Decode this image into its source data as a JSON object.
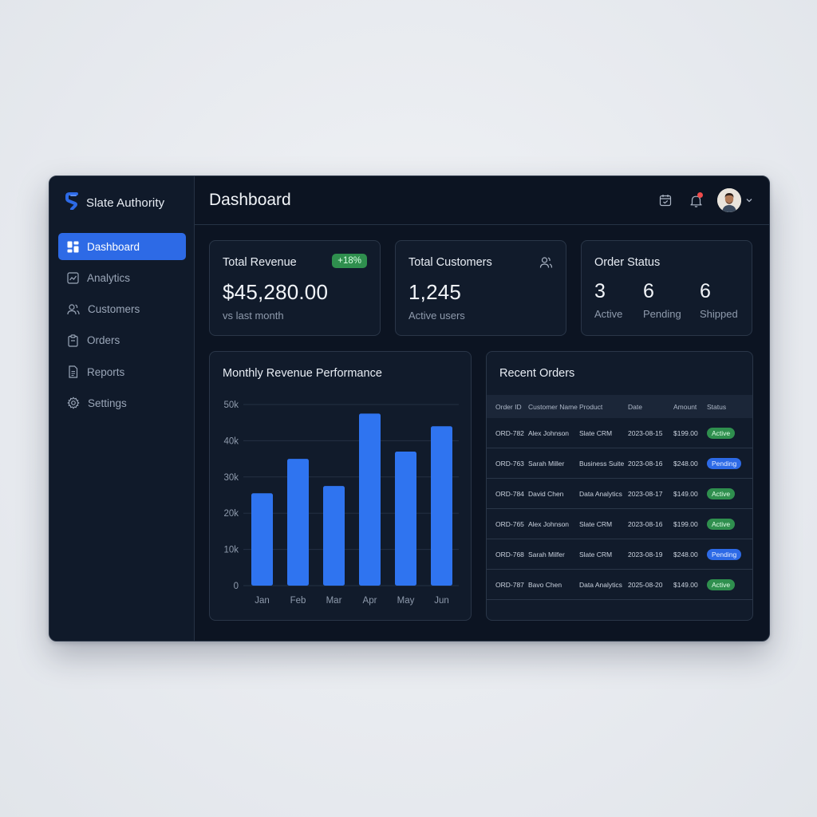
{
  "brand": {
    "name": "Slate Authority",
    "logo_icon": "slate-logo-icon",
    "accent": "#2d6ae6"
  },
  "sidebar": {
    "items": [
      {
        "label": "Dashboard",
        "icon": "dashboard-grid-icon",
        "active": true
      },
      {
        "label": "Analytics",
        "icon": "analytics-chart-icon",
        "active": false
      },
      {
        "label": "Customers",
        "icon": "users-icon",
        "active": false
      },
      {
        "label": "Orders",
        "icon": "clipboard-icon",
        "active": false
      },
      {
        "label": "Reports",
        "icon": "document-icon",
        "active": false
      },
      {
        "label": "Settings",
        "icon": "gear-icon",
        "active": false
      }
    ]
  },
  "header": {
    "title": "Dashboard",
    "icons": [
      "calendar-icon",
      "bell-icon",
      "avatar",
      "chevron-down-icon"
    ]
  },
  "cards": {
    "revenue": {
      "title": "Total Revenue",
      "value": "$45,280.00",
      "badge": "+18%",
      "sub": "vs last month"
    },
    "customers": {
      "title": "Total Customers",
      "value": "1,245",
      "sub": "Active users",
      "icon": "users-icon"
    },
    "order_status": {
      "title": "Order Status",
      "items": [
        {
          "value": "3",
          "label": "Active"
        },
        {
          "value": "6",
          "label": "Pending"
        },
        {
          "value": "6",
          "label": "Shipped"
        }
      ]
    }
  },
  "chart": {
    "title": "Monthly Revenue Performance"
  },
  "chart_data": {
    "type": "bar",
    "title": "Monthly Revenue Performance",
    "categories": [
      "Jan",
      "Feb",
      "Mar",
      "Apr",
      "May",
      "Jun"
    ],
    "values": [
      25500,
      35000,
      27500,
      47500,
      37000,
      44000
    ],
    "yticks": [
      "0",
      "10k",
      "20k",
      "30k",
      "40k",
      "50k"
    ],
    "ylim": [
      0,
      50000
    ],
    "grid": true,
    "color": "#2f74f0"
  },
  "orders": {
    "title": "Recent Orders",
    "columns": [
      "Order ID",
      "Customer Name",
      "Product",
      "Date",
      "Amount",
      "Status"
    ],
    "rows": [
      [
        "ORD-782",
        "Alex Johnson",
        "Slate CRM",
        "2023-08-15",
        "$199.00",
        "Active"
      ],
      [
        "ORD-763",
        "Sarah Miller",
        "Business Suite",
        "2023-08-16",
        "$248.00",
        "Pending"
      ],
      [
        "ORD-784",
        "David Chen",
        "Data Analytics",
        "2023-08-17",
        "$149.00",
        "Active"
      ],
      [
        "ORD-765",
        "Alex Johnson",
        "Slate CRM",
        "2023-08-16",
        "$199.00",
        "Active"
      ],
      [
        "ORD-768",
        "Sarah Milfer",
        "Slate CRM",
        "2023-08-19",
        "$248.00",
        "Pending"
      ],
      [
        "ORD-787",
        "Bavo Chen",
        "Data Analytics",
        "2025-08-20",
        "$149.00",
        "Active"
      ]
    ],
    "status_colors": {
      "Active": "#2f8f4e",
      "Pending": "#2d6ae6"
    }
  }
}
